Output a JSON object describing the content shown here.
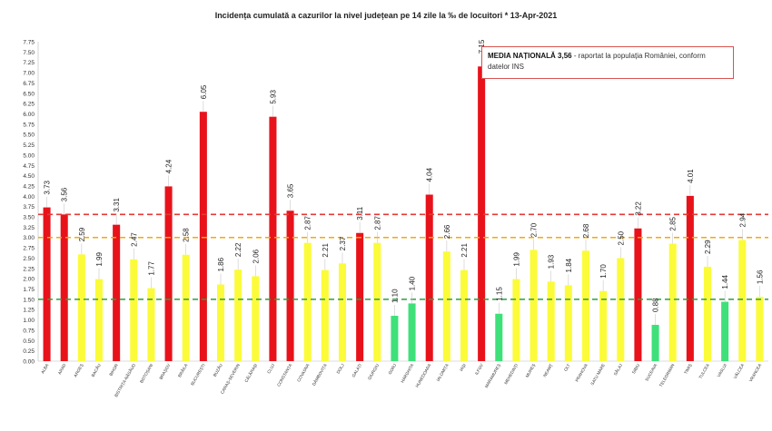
{
  "chart_data": {
    "type": "bar",
    "title": "Incidența cumulată a cazurilor la nivel județean pe 14 zile la ‰ de locuitori *   13-Apr-2021",
    "xlabel": "",
    "ylabel": "",
    "ylim": [
      0,
      7.75
    ],
    "ytick_step": 0.25,
    "grid": false,
    "categories": [
      "ALBA",
      "ARAD",
      "ARGEȘ",
      "BACĂU",
      "BIHOR",
      "BISTRIȚA-NĂSĂUD",
      "BOTOȘANI",
      "BRAȘOV",
      "BRĂILA",
      "BUCUREȘTI",
      "BUZĂU",
      "CARAȘ-SEVERIN",
      "CĂLĂRAȘI",
      "CLUJ",
      "CONSTANȚA",
      "COVASNA",
      "DÂMBOVIȚA",
      "DOLJ",
      "GALAȚI",
      "GIURGIU",
      "GORJ",
      "HARGHITA",
      "HUNEDOARA",
      "IALOMIȚA",
      "IAȘI",
      "ILFOV",
      "MARAMUREȘ",
      "MEHEDINȚI",
      "MUREȘ",
      "NEAMȚ",
      "OLT",
      "PRAHOVA",
      "SATU MARE",
      "SĂLAJ",
      "SIBIU",
      "SUCEAVA",
      "TELEORMAN",
      "TIMIȘ",
      "TULCEA",
      "VASLUI",
      "VÂLCEA",
      "VRANCEA"
    ],
    "values": [
      3.73,
      3.56,
      2.59,
      1.99,
      3.31,
      2.47,
      1.77,
      4.24,
      2.58,
      6.05,
      1.86,
      2.22,
      2.06,
      5.93,
      3.65,
      2.87,
      2.21,
      2.37,
      3.11,
      2.87,
      1.1,
      1.4,
      4.04,
      2.66,
      2.21,
      7.15,
      1.15,
      1.99,
      2.7,
      1.93,
      1.84,
      2.68,
      1.7,
      2.5,
      3.22,
      0.88,
      2.85,
      4.01,
      2.29,
      1.44,
      2.94,
      1.56
    ],
    "value_labels": [
      "3.73",
      "3.56",
      "2.59",
      "1.99",
      "3.31",
      "2.47",
      "1.77",
      "4.24",
      "2.58",
      "6.05",
      "1.86",
      "2.22",
      "2.06",
      "5.93",
      "3.65",
      "2.87",
      "2.21",
      "2.37",
      "3.11",
      "2.87",
      "1.10",
      "1.40",
      "4.04",
      "2.66",
      "2.21",
      "7.15",
      "1.15",
      "1.99",
      "2.70",
      "1.93",
      "1.84",
      "2.68",
      "1.70",
      "2.50",
      "3.22",
      "0.88",
      "2.85",
      "4.01",
      "2.29",
      "1.44",
      "2.94",
      "1.56"
    ],
    "reference_lines": [
      {
        "value": 3.56,
        "color": "#e53935"
      },
      {
        "value": 3.0,
        "color": "#f5a800"
      },
      {
        "value": 1.5,
        "color": "#2e9e3e"
      }
    ],
    "thresholds": {
      "red_above": 3.0,
      "yellow_above": 1.5
    },
    "colors": {
      "red": "#e8121b",
      "yellow": "#fbfb3a",
      "green": "#3ee07a"
    },
    "annotation": {
      "strong": "MEDIA NAȚIONALĂ  3,56",
      "text": " - raportat la populația României, conform datelor INS"
    }
  }
}
